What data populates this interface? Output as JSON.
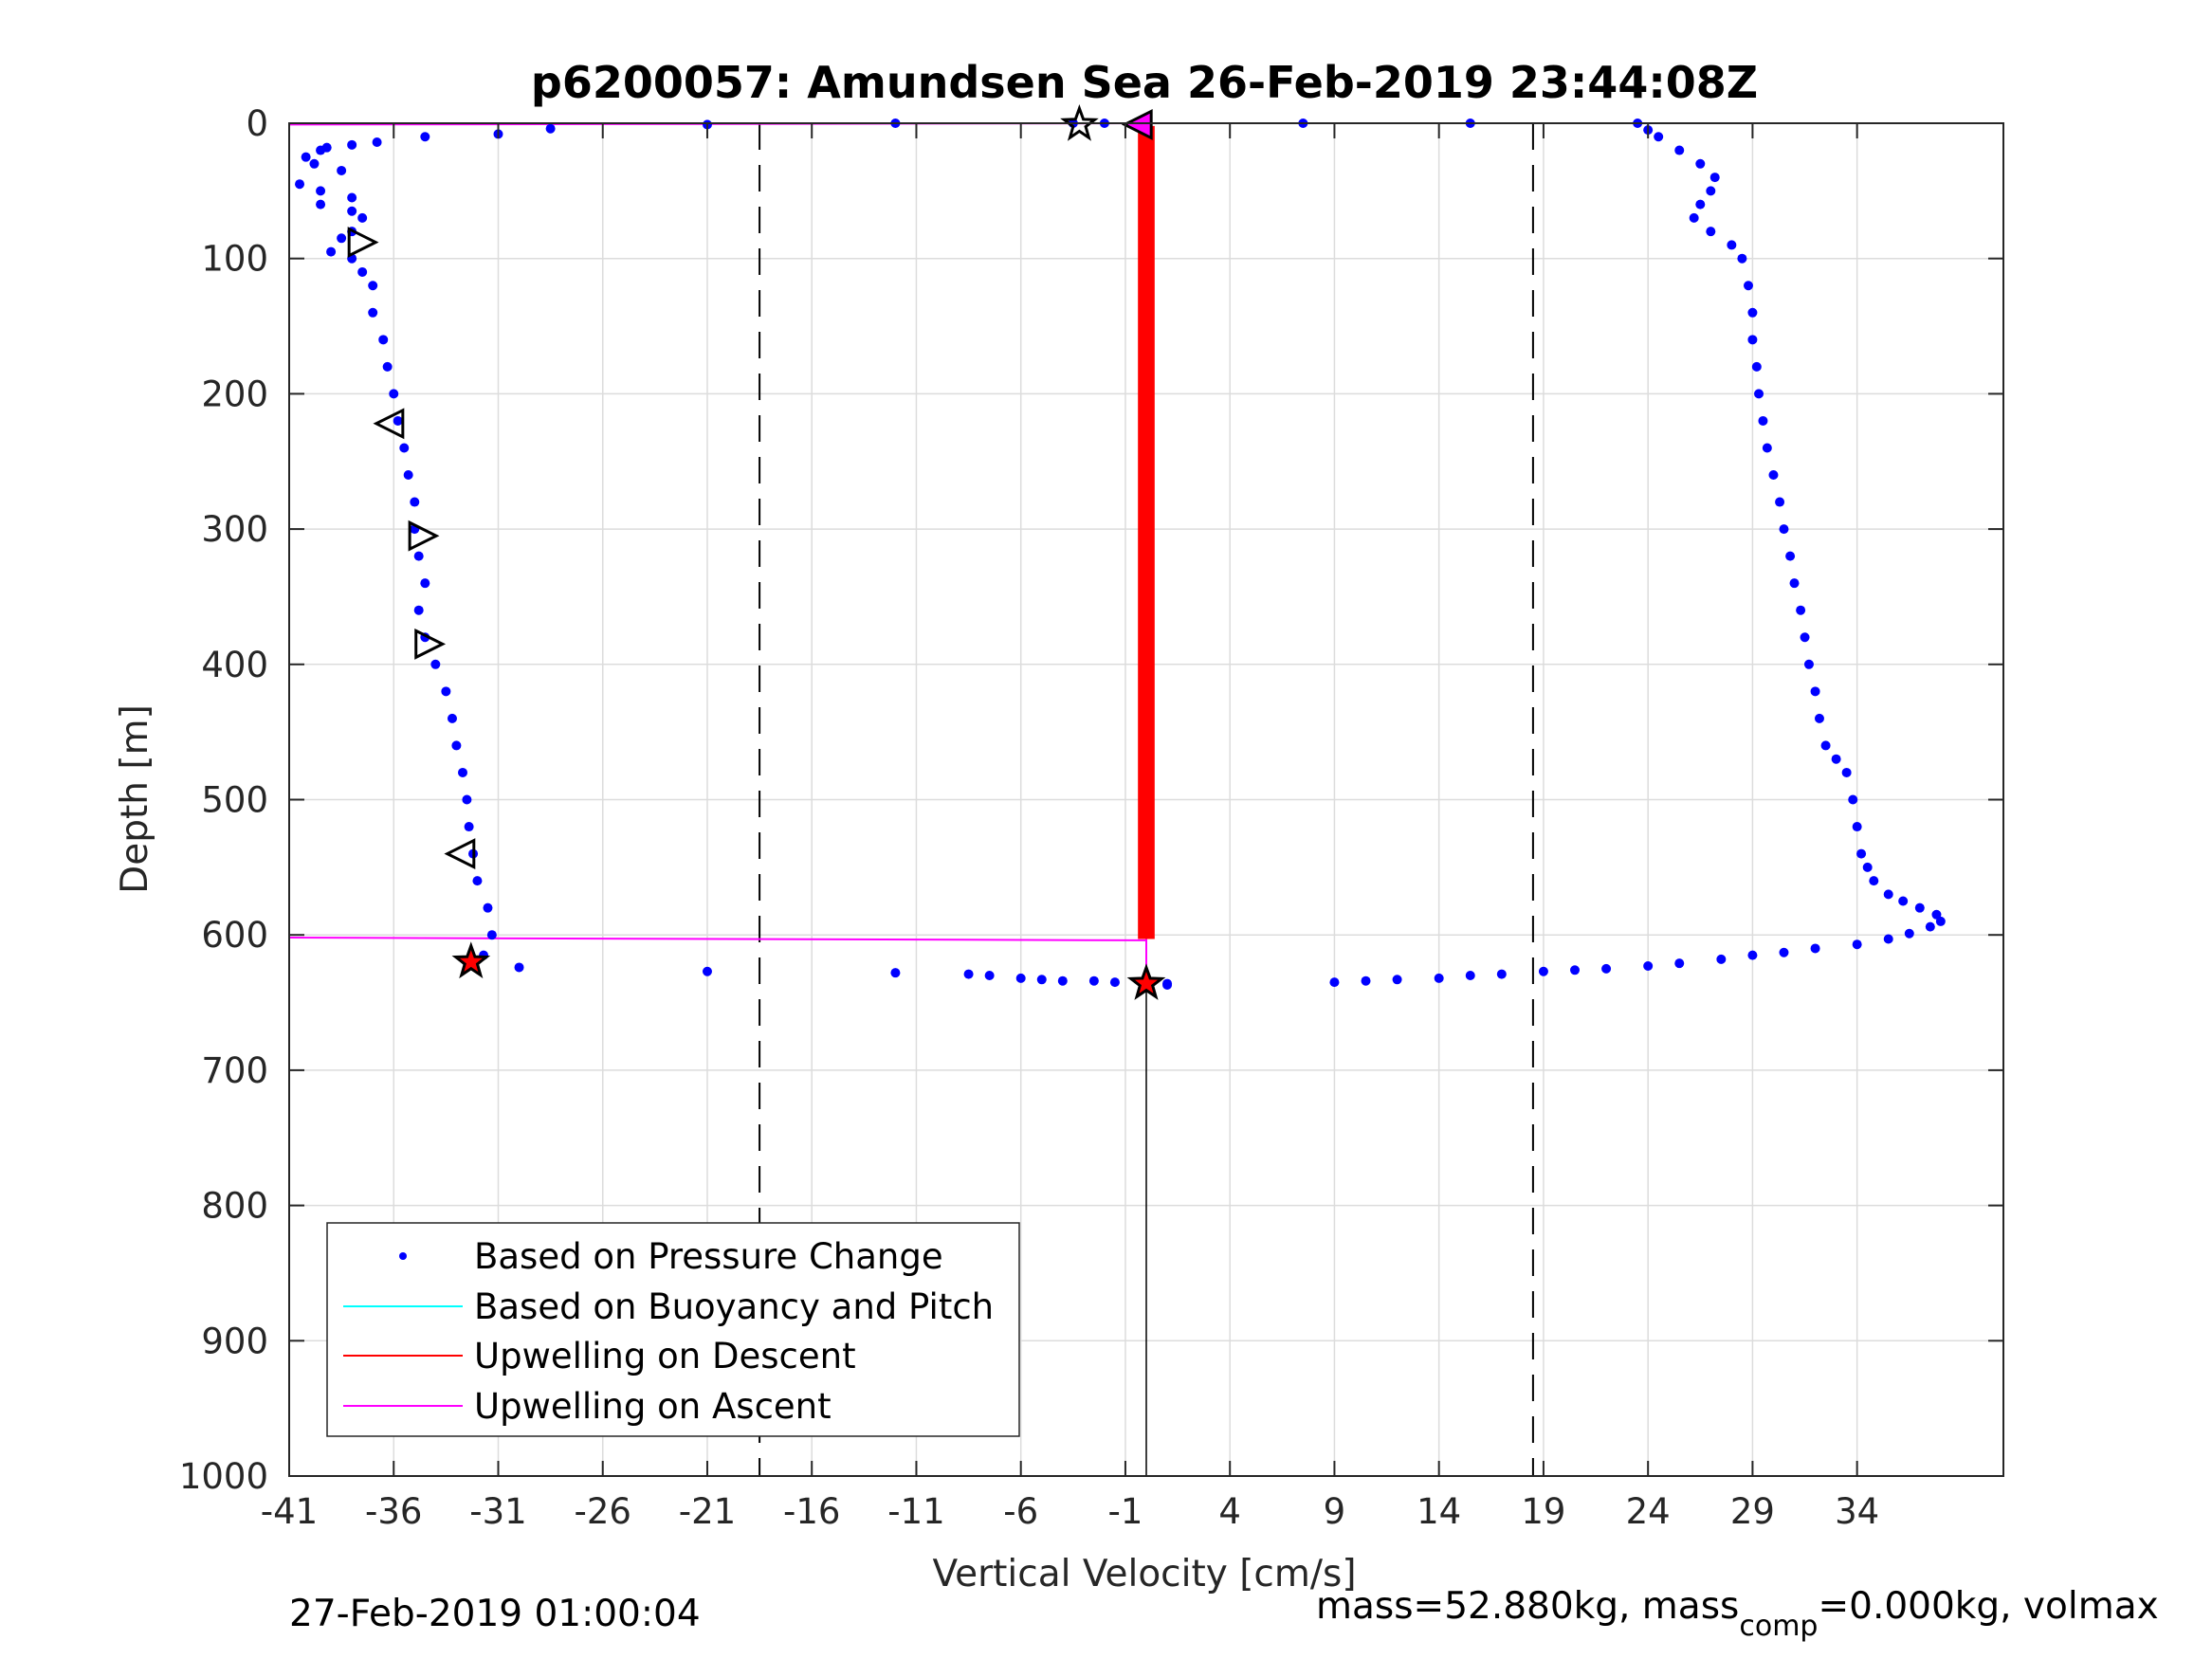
{
  "chart_data": {
    "type": "scatter",
    "title": "p6200057: Amundsen Sea 26-Feb-2019 23:44:08Z",
    "xlabel": "Vertical Velocity [cm/s]",
    "ylabel": "Depth [m]",
    "xlim": [
      -41,
      41
    ],
    "ylim": [
      0,
      1000
    ],
    "y_reversed": true,
    "grid": true,
    "xticks": [
      -41,
      -36,
      -31,
      -26,
      -21,
      -16,
      -11,
      -6,
      -1,
      4,
      9,
      14,
      19,
      24,
      29,
      34
    ],
    "yticks": [
      0,
      100,
      200,
      300,
      400,
      500,
      600,
      700,
      800,
      900,
      1000
    ],
    "xtick_labels": [
      "-41",
      "-36",
      "-31",
      "-26",
      "-21",
      "-16",
      "-11",
      "-6",
      "-1",
      "4",
      "9",
      "14",
      "19",
      "24",
      "29",
      "34"
    ],
    "ytick_labels": [
      "0",
      "100",
      "200",
      "300",
      "400",
      "500",
      "600",
      "700",
      "800",
      "900",
      "1000"
    ],
    "legend": {
      "placement": "bottom-left",
      "entries": [
        {
          "label": "Based on Pressure Change",
          "color": "#0000ff",
          "style": "dot"
        },
        {
          "label": "Based on Buoyancy and Pitch",
          "color": "#00ffff",
          "style": "line"
        },
        {
          "label": "Upwelling on Descent",
          "color": "#ff0000",
          "style": "line"
        },
        {
          "label": "Upwelling on Ascent",
          "color": "#ff00ff",
          "style": "line"
        }
      ]
    },
    "dashed_lines_x": [
      -18.5,
      18.5
    ],
    "zero_line_x": 0,
    "series": [
      {
        "name": "Based on Pressure Change",
        "kind": "points",
        "color": "#0000ff",
        "segments": [
          {
            "part": "descent",
            "points": [
              [
                -3.5,
                0
              ],
              [
                -2.0,
                0
              ],
              [
                -12,
                0
              ],
              [
                -21,
                1
              ],
              [
                -28.5,
                4
              ],
              [
                -31,
                8
              ],
              [
                -34.5,
                10
              ],
              [
                -36.8,
                14
              ],
              [
                -38,
                16
              ],
              [
                -39.2,
                18
              ],
              [
                -39.5,
                20
              ],
              [
                -40.2,
                25
              ],
              [
                -39.8,
                30
              ],
              [
                -38.5,
                35
              ],
              [
                -40.5,
                45
              ],
              [
                -39.5,
                50
              ],
              [
                -38,
                55
              ],
              [
                -39.5,
                60
              ],
              [
                -38,
                65
              ],
              [
                -37.5,
                70
              ],
              [
                -38,
                80
              ],
              [
                -38.5,
                85
              ],
              [
                -39,
                95
              ],
              [
                -38,
                100
              ],
              [
                -37.5,
                110
              ],
              [
                -37,
                120
              ],
              [
                -37,
                140
              ],
              [
                -36.5,
                160
              ],
              [
                -36.3,
                180
              ],
              [
                -36,
                200
              ],
              [
                -35.8,
                220
              ],
              [
                -35.5,
                240
              ],
              [
                -35.3,
                260
              ],
              [
                -35,
                280
              ],
              [
                -35,
                300
              ],
              [
                -34.8,
                320
              ],
              [
                -34.5,
                340
              ],
              [
                -34.8,
                360
              ],
              [
                -34.5,
                380
              ],
              [
                -34,
                400
              ],
              [
                -33.5,
                420
              ],
              [
                -33.2,
                440
              ],
              [
                -33,
                460
              ],
              [
                -32.7,
                480
              ],
              [
                -32.5,
                500
              ],
              [
                -32.4,
                520
              ],
              [
                -32.2,
                540
              ],
              [
                -32,
                560
              ],
              [
                -31.5,
                580
              ],
              [
                -31.3,
                600
              ],
              [
                -31.7,
                615
              ],
              [
                -32.5,
                620
              ],
              [
                -30,
                624
              ],
              [
                -21,
                627
              ],
              [
                -12,
                628
              ],
              [
                -8.5,
                629
              ],
              [
                -7.5,
                630
              ],
              [
                -6,
                632
              ],
              [
                -5,
                633
              ],
              [
                -4,
                634
              ],
              [
                -2.5,
                634
              ],
              [
                -1.5,
                635
              ],
              [
                0,
                636
              ],
              [
                1,
                637
              ]
            ]
          },
          {
            "part": "ascent",
            "points": [
              [
                1,
                636
              ],
              [
                9,
                635
              ],
              [
                10.5,
                634
              ],
              [
                12,
                633
              ],
              [
                14,
                632
              ],
              [
                15.5,
                630
              ],
              [
                17,
                629
              ],
              [
                19,
                627
              ],
              [
                20.5,
                626
              ],
              [
                22,
                625
              ],
              [
                24,
                623
              ],
              [
                25.5,
                621
              ],
              [
                27.5,
                618
              ],
              [
                29,
                615
              ],
              [
                30.5,
                613
              ],
              [
                32,
                610
              ],
              [
                34,
                607
              ],
              [
                35.5,
                603
              ],
              [
                36.5,
                599
              ],
              [
                37.5,
                594
              ],
              [
                38,
                590
              ],
              [
                37.8,
                585
              ],
              [
                37,
                580
              ],
              [
                36.2,
                575
              ],
              [
                35.5,
                570
              ],
              [
                34.8,
                560
              ],
              [
                34.5,
                550
              ],
              [
                34.2,
                540
              ],
              [
                34,
                520
              ],
              [
                33.8,
                500
              ],
              [
                33.5,
                480
              ],
              [
                33,
                470
              ],
              [
                32.5,
                460
              ],
              [
                32.2,
                440
              ],
              [
                32,
                420
              ],
              [
                31.7,
                400
              ],
              [
                31.5,
                380
              ],
              [
                31.3,
                360
              ],
              [
                31,
                340
              ],
              [
                30.8,
                320
              ],
              [
                30.5,
                300
              ],
              [
                30.3,
                280
              ],
              [
                30,
                260
              ],
              [
                29.7,
                240
              ],
              [
                29.5,
                220
              ],
              [
                29.3,
                200
              ],
              [
                29.2,
                180
              ],
              [
                29,
                160
              ],
              [
                29,
                140
              ],
              [
                28.8,
                120
              ],
              [
                28.5,
                100
              ],
              [
                28,
                90
              ],
              [
                27,
                80
              ],
              [
                26.2,
                70
              ],
              [
                26.5,
                60
              ],
              [
                27,
                50
              ],
              [
                27.2,
                40
              ],
              [
                26.5,
                30
              ],
              [
                25.5,
                20
              ],
              [
                24.5,
                10
              ],
              [
                24,
                5
              ],
              [
                23.5,
                0
              ],
              [
                15.5,
                0
              ],
              [
                7.5,
                0
              ]
            ]
          }
        ]
      },
      {
        "name": "Upwelling on Descent",
        "kind": "band",
        "color": "#ff0000",
        "x_range": [
          -0.4,
          0.4
        ],
        "depth_range": [
          2,
          603
        ]
      },
      {
        "name": "Upwelling on Ascent",
        "kind": "lines",
        "color": "#ff00ff",
        "lines": [
          {
            "from": [
              -41,
              1
            ],
            "to": [
              0,
              0
            ]
          },
          {
            "from": [
              -41,
              602
            ],
            "to": [
              0,
              604
            ]
          },
          {
            "from": [
              0,
              603
            ],
            "to": [
              0,
              630
            ]
          }
        ]
      }
    ],
    "markers": [
      {
        "shape": "triangle-right",
        "x": -37.5,
        "y": 88,
        "fill": "none"
      },
      {
        "shape": "triangle-left",
        "x": -36.2,
        "y": 222,
        "fill": "none"
      },
      {
        "shape": "triangle-right",
        "x": -34.6,
        "y": 305,
        "fill": "none"
      },
      {
        "shape": "triangle-right",
        "x": -34.3,
        "y": 385,
        "fill": "none"
      },
      {
        "shape": "triangle-left",
        "x": -32.8,
        "y": 540,
        "fill": "none"
      },
      {
        "shape": "star",
        "x": -32.3,
        "y": 620,
        "fill": "#ff0000"
      },
      {
        "shape": "star",
        "x": -3.2,
        "y": 1,
        "fill": "none"
      },
      {
        "shape": "triangle-left",
        "x": -0.4,
        "y": 1,
        "fill": "#ff00ff"
      },
      {
        "shape": "star",
        "x": 0,
        "y": 636,
        "fill": "#ff0000"
      }
    ]
  },
  "footer": {
    "timestamp": "27-Feb-2019 01:00:04",
    "mass_prefix": "mass=52.880kg, mass",
    "mass_sub": "comp",
    "mass_suffix": "=0.000kg, volmax"
  }
}
